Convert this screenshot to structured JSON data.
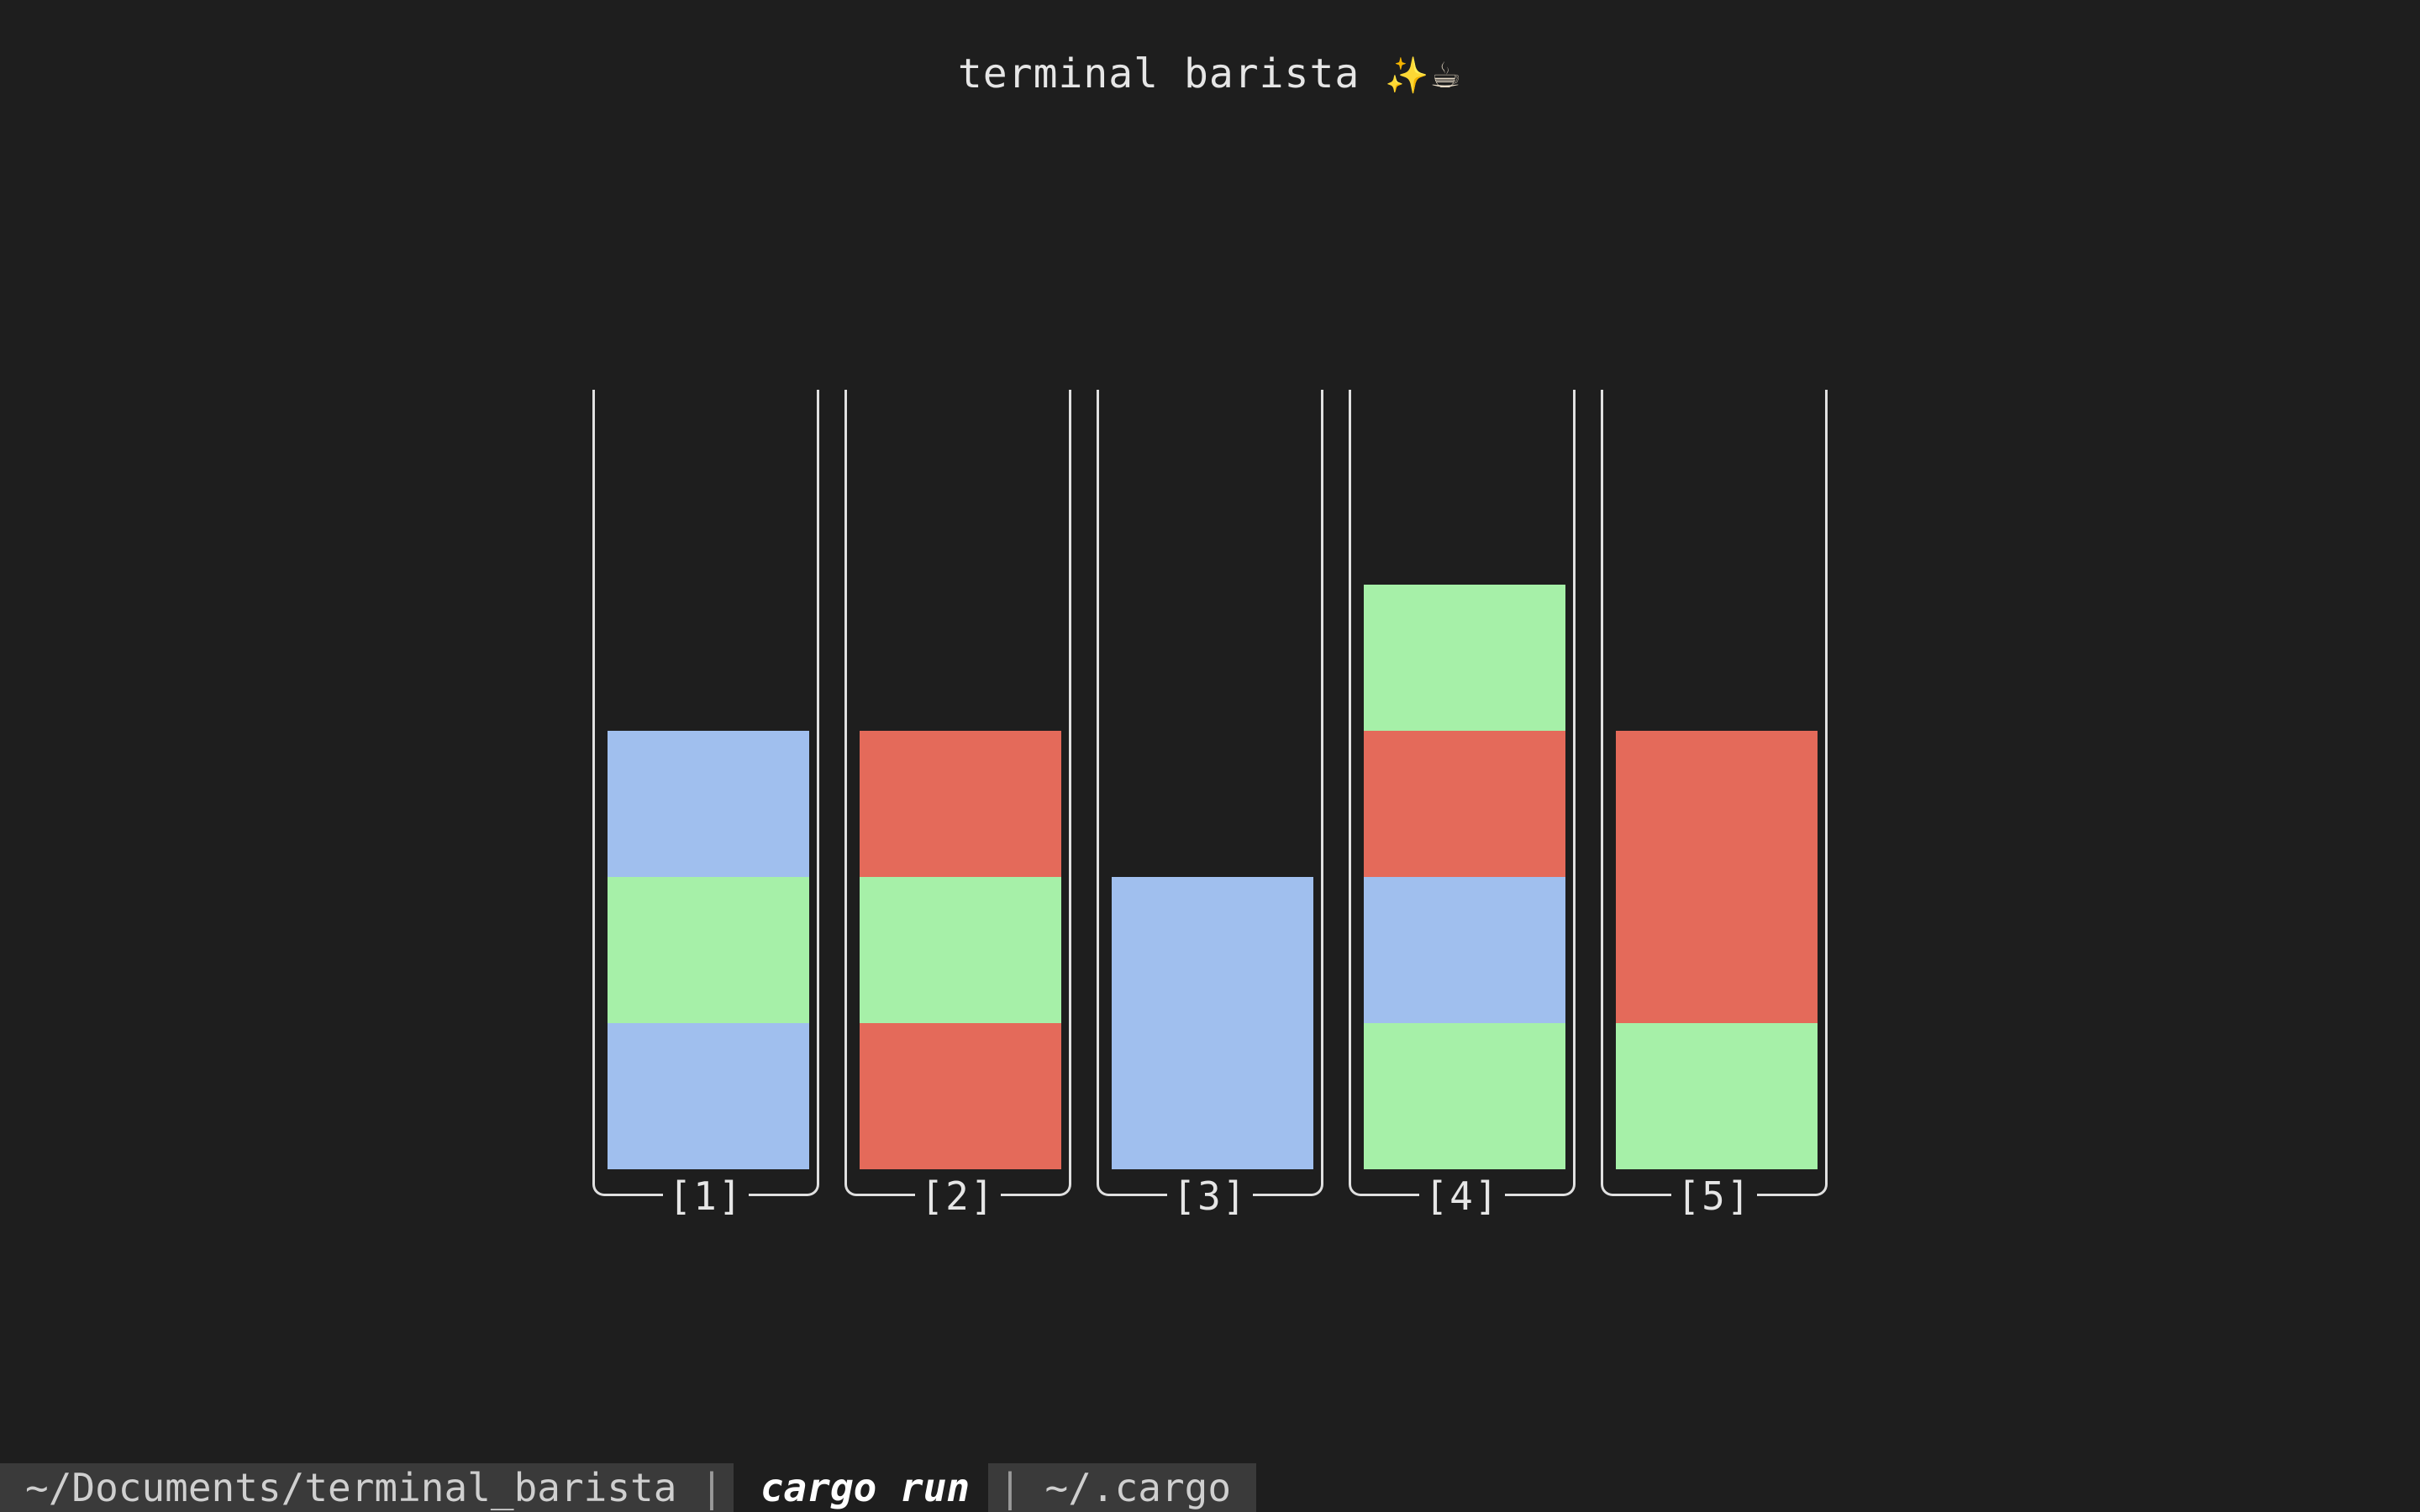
{
  "app": {
    "title": "terminal barista",
    "title_icons": [
      "sparkles-icon",
      "coffee-cup-icon"
    ]
  },
  "colors": {
    "background": "#1e1e1e",
    "blue": "#a0bfee",
    "green": "#a6f0a8",
    "red": "#e46a5a"
  },
  "tubes": [
    {
      "label": "[1]",
      "layers_bottom_to_top": [
        "blue",
        "green",
        "blue"
      ]
    },
    {
      "label": "[2]",
      "layers_bottom_to_top": [
        "red",
        "green",
        "red"
      ]
    },
    {
      "label": "[3]",
      "layers_bottom_to_top": [
        "blue",
        "blue"
      ]
    },
    {
      "label": "[4]",
      "layers_bottom_to_top": [
        "green",
        "blue",
        "red",
        "green"
      ]
    },
    {
      "label": "[5]",
      "layers_bottom_to_top": [
        "green",
        "red",
        "red"
      ]
    }
  ],
  "tube_capacity": 5,
  "statusbar": {
    "cwd": "~/Documents/terminal_barista",
    "separator": "|",
    "command": "cargo run",
    "right": "~/.cargo"
  }
}
